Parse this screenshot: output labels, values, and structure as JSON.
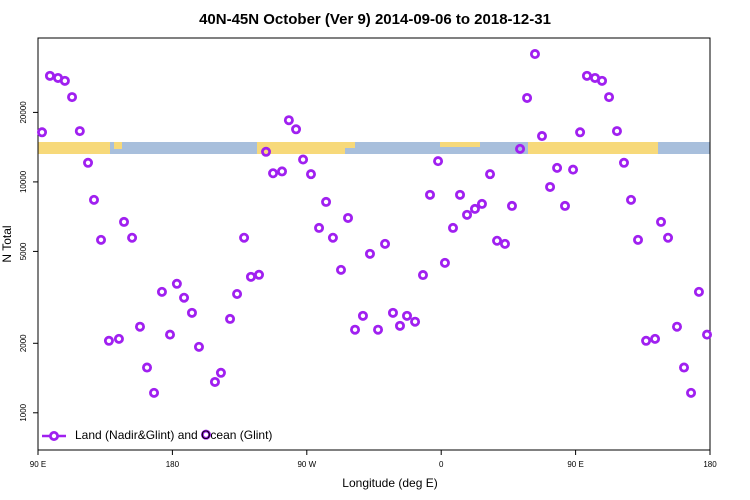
{
  "chart_data": {
    "type": "scatter",
    "title": "40N-45N October (Ver 9)   2014-09-06 to 2018-12-31",
    "x_label": "Longitude (deg E)",
    "y_label": "N Total",
    "xlim": [
      90,
      540
    ],
    "ylim": [
      690,
      42000
    ],
    "log_y": true,
    "legend": "bottomleft",
    "xticks": [
      {
        "value": 90,
        "label": "90 E"
      },
      180,
      {
        "value": 270,
        "label": "90 W"
      },
      {
        "value": 360,
        "label": "0"
      },
      {
        "value": 450,
        "label": "90 E"
      },
      {
        "value": 540,
        "label": "180"
      }
    ],
    "yticks": [
      1000,
      2000,
      5000,
      10000,
      20000
    ],
    "series": [
      {
        "name": "Land (Nadir&Glint) and Ocean (Glint)",
        "color": "#a020f0",
        "x": [
          92.7,
          98,
          103.4,
          108,
          112.8,
          118,
          123.5,
          127.5,
          132.2,
          137.5,
          144.2,
          147.6,
          153,
          158.3,
          163,
          167.7,
          173,
          178.4,
          183,
          187.8,
          193.1,
          197.8,
          202.5,
          208.5,
          212.5,
          218.6,
          223.3,
          228,
          232.6,
          238,
          242.7,
          247.4,
          253.4,
          258,
          262.8,
          267.5,
          272.8,
          278.2,
          282.9,
          287.5,
          292.9,
          297.6,
          302.3,
          307.6,
          312.3,
          317.7,
          322.4,
          327.7,
          332.4,
          337.1,
          342.5,
          347.8,
          352.5,
          357.9,
          362.5,
          367.9,
          372.6,
          377.3,
          382.6,
          387.3,
          392.7,
          397.4,
          402.7,
          407.4,
          412.8,
          417.5,
          422.8,
          427.5,
          432.9,
          437.6,
          442.9,
          448.3,
          453,
          457.6,
          463,
          467.7,
          472.4,
          477.7,
          482.4,
          487.1,
          491.8,
          497.2,
          503.2,
          507.2,
          511.9,
          517.9,
          522.6,
          527.3,
          532.6,
          538
        ],
        "values": [
          16400,
          28800,
          28200,
          27400,
          23300,
          16600,
          12100,
          8360,
          5610,
          2050,
          2090,
          6710,
          5730,
          2360,
          1570,
          1220,
          3340,
          2180,
          3620,
          3150,
          2710,
          1930,
          804,
          1360,
          1490,
          2550,
          3270,
          5730,
          3880,
          3960,
          13500,
          10900,
          11100,
          18500,
          16900,
          12500,
          10800,
          6320,
          8190,
          5730,
          4160,
          6980,
          2290,
          2630,
          4880,
          2290,
          5390,
          2710,
          2380,
          2630,
          2480,
          3950,
          8790,
          12300,
          4460,
          6320,
          8790,
          7200,
          7640,
          8030,
          10800,
          5560,
          5390,
          7870,
          13900,
          23100,
          35800,
          15800,
          9510,
          11500,
          7870,
          11300,
          16400,
          28800,
          28200,
          27400,
          23300,
          16600,
          12100,
          8360,
          5610,
          2050,
          2090,
          6710,
          5730,
          2360,
          1570,
          1220,
          3340,
          2180
        ]
      }
    ]
  }
}
